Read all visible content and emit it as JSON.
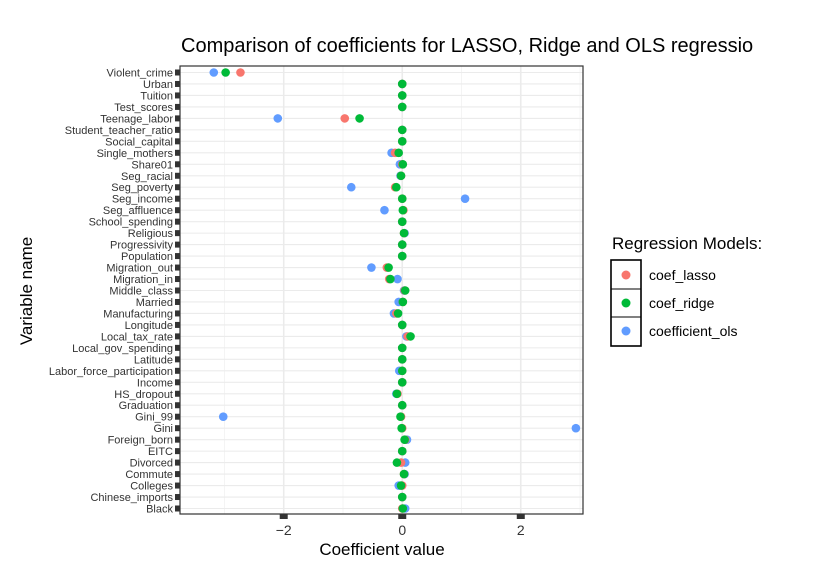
{
  "chart_data": {
    "type": "scatter",
    "title": "Comparison of coefficients for LASSO, Ridge and OLS regressio",
    "xlabel": "Coefficient value",
    "ylabel": "Variable name",
    "xlim": [
      -3.75,
      3.05
    ],
    "x_ticks": [
      -2,
      0,
      2
    ],
    "x_tick_labels": [
      "−2",
      "0",
      "2"
    ],
    "grid": true,
    "legend": {
      "title": "Regression Models:",
      "placement": "right",
      "entries": [
        {
          "name": "coef_lasso",
          "color": "#F8766D"
        },
        {
          "name": "coef_ridge",
          "color": "#00BA38"
        },
        {
          "name": "coefficient_ols",
          "color": "#619CFF"
        }
      ]
    },
    "categories": [
      "Violent_crime",
      "Urban",
      "Tuition",
      "Test_scores",
      "Teenage_labor",
      "Student_teacher_ratio",
      "Social_capital",
      "Single_mothers",
      "Share01",
      "Seg_racial",
      "Seg_poverty",
      "Seg_income",
      "Seg_affluence",
      "School_spending",
      "Religious",
      "Progressivity",
      "Population",
      "Migration_out",
      "Migration_in",
      "Middle_class",
      "Married",
      "Manufacturing",
      "Longitude",
      "Local_tax_rate",
      "Local_gov_spending",
      "Latitude",
      "Labor_force_participation",
      "Income",
      "HS_dropout",
      "Graduation",
      "Gini_99",
      "Gini",
      "Foreign_born",
      "EITC",
      "Divorced",
      "Commute",
      "Colleges",
      "Chinese_imports",
      "Black"
    ],
    "series": [
      {
        "name": "coef_lasso",
        "values": [
          -2.73,
          0,
          0,
          0,
          -0.97,
          0,
          0,
          -0.12,
          0,
          -0.02,
          -0.12,
          0,
          0.02,
          0,
          0.03,
          0,
          0,
          -0.26,
          -0.22,
          0.04,
          0.01,
          -0.1,
          0,
          0.09,
          0,
          0,
          0,
          0,
          -0.08,
          0,
          -0.02,
          0,
          0.05,
          0,
          -0.02,
          0.03,
          0,
          0,
          0
        ]
      },
      {
        "name": "coef_ridge",
        "values": [
          -2.98,
          0,
          0,
          0,
          -0.72,
          0,
          0,
          -0.06,
          0.01,
          -0.02,
          -0.1,
          0,
          0.01,
          0,
          0.03,
          0,
          0,
          -0.23,
          -0.2,
          0.05,
          0.01,
          -0.07,
          0,
          0.14,
          0,
          0,
          0,
          0,
          -0.09,
          0,
          -0.03,
          -0.01,
          0.04,
          0,
          -0.09,
          0.03,
          -0.02,
          0,
          0.01
        ]
      },
      {
        "name": "coefficient_ols",
        "values": [
          -3.18,
          0,
          0,
          0,
          -2.1,
          0,
          0,
          -0.18,
          -0.04,
          -0.03,
          -0.86,
          1.06,
          -0.3,
          0,
          0.04,
          0,
          0,
          -0.52,
          -0.08,
          0.03,
          -0.06,
          -0.14,
          0,
          0.07,
          0,
          0,
          -0.05,
          0,
          -0.1,
          0,
          -3.02,
          2.93,
          0.08,
          0,
          0.05,
          0.04,
          -0.06,
          0,
          0.05
        ]
      }
    ]
  }
}
